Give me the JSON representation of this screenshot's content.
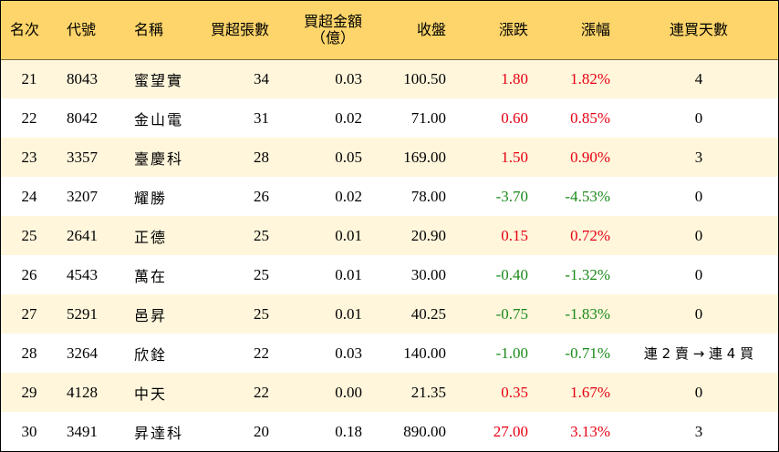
{
  "colors": {
    "header_bg": "#fdd56a",
    "row_alt_bg": "#fff6dc",
    "row_bg": "#ffffff",
    "up": "#e60012",
    "down": "#1a8a1a"
  },
  "headers": {
    "rank": "名次",
    "code": "代號",
    "name": "名稱",
    "net_buy_lots": "買超張數",
    "net_buy_amount": "買超金額",
    "net_buy_amount_unit": "（億）",
    "close": "收盤",
    "change": "漲跌",
    "change_pct": "漲幅",
    "streak": "連買天數"
  },
  "rows": [
    {
      "rank": "21",
      "code": "8043",
      "name": "蜜望實",
      "lots": "34",
      "amount": "0.03",
      "close": "100.50",
      "change": "1.80",
      "pct": "1.82%",
      "dir": "up",
      "streak": "4"
    },
    {
      "rank": "22",
      "code": "8042",
      "name": "金山電",
      "lots": "31",
      "amount": "0.02",
      "close": "71.00",
      "change": "0.60",
      "pct": "0.85%",
      "dir": "up",
      "streak": "0"
    },
    {
      "rank": "23",
      "code": "3357",
      "name": "臺慶科",
      "lots": "28",
      "amount": "0.05",
      "close": "169.00",
      "change": "1.50",
      "pct": "0.90%",
      "dir": "up",
      "streak": "3"
    },
    {
      "rank": "24",
      "code": "3207",
      "name": "耀勝",
      "lots": "26",
      "amount": "0.02",
      "close": "78.00",
      "change": "-3.70",
      "pct": "-4.53%",
      "dir": "down",
      "streak": "0"
    },
    {
      "rank": "25",
      "code": "2641",
      "name": "正德",
      "lots": "25",
      "amount": "0.01",
      "close": "20.90",
      "change": "0.15",
      "pct": "0.72%",
      "dir": "up",
      "streak": "0"
    },
    {
      "rank": "26",
      "code": "4543",
      "name": "萬在",
      "lots": "25",
      "amount": "0.01",
      "close": "30.00",
      "change": "-0.40",
      "pct": "-1.32%",
      "dir": "down",
      "streak": "0"
    },
    {
      "rank": "27",
      "code": "5291",
      "name": "邑昇",
      "lots": "25",
      "amount": "0.01",
      "close": "40.25",
      "change": "-0.75",
      "pct": "-1.83%",
      "dir": "down",
      "streak": "0"
    },
    {
      "rank": "28",
      "code": "3264",
      "name": "欣銓",
      "lots": "22",
      "amount": "0.03",
      "close": "140.00",
      "change": "-1.00",
      "pct": "-0.71%",
      "dir": "down",
      "streak": "連 2 賣 → 連 4 買"
    },
    {
      "rank": "29",
      "code": "4128",
      "name": "中天",
      "lots": "22",
      "amount": "0.00",
      "close": "21.35",
      "change": "0.35",
      "pct": "1.67%",
      "dir": "up",
      "streak": "0"
    },
    {
      "rank": "30",
      "code": "3491",
      "name": "昇達科",
      "lots": "20",
      "amount": "0.18",
      "close": "890.00",
      "change": "27.00",
      "pct": "3.13%",
      "dir": "up",
      "streak": "3"
    }
  ]
}
